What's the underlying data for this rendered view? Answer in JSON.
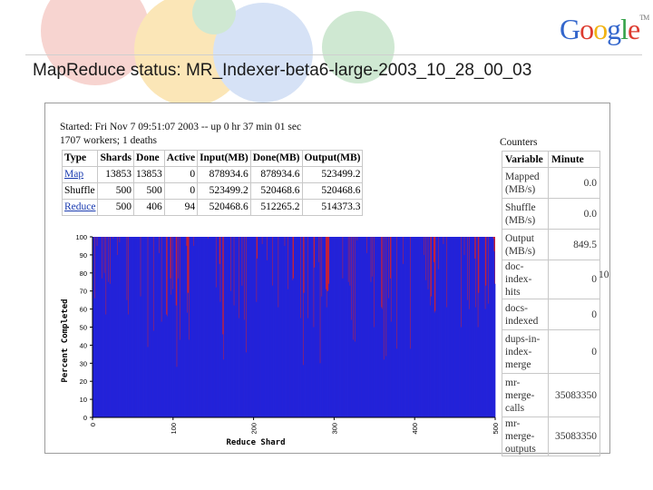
{
  "header": {
    "logo_letters": [
      {
        "ch": "G",
        "color": "#3366cc"
      },
      {
        "ch": "o",
        "color": "#dd3b2f"
      },
      {
        "ch": "o",
        "color": "#f1b313"
      },
      {
        "ch": "g",
        "color": "#3366cc"
      },
      {
        "ch": "l",
        "color": "#36a24a"
      },
      {
        "ch": "e",
        "color": "#dd3b2f"
      }
    ],
    "logo_tm": "TM",
    "title": "MapReduce status: MR_Indexer-beta6-large-2003_10_28_00_03"
  },
  "status": {
    "started": "Started: Fri Nov 7 09:51:07 2003 -- up 0 hr 37 min 01 sec",
    "workers": "1707 workers; 1 deaths"
  },
  "phases_table": {
    "columns": [
      "Type",
      "Shards",
      "Done",
      "Active",
      "Input(MB)",
      "Done(MB)",
      "Output(MB)"
    ],
    "rows": [
      {
        "type": "Map",
        "link": true,
        "cells": [
          "13853",
          "13853",
          "0",
          "878934.6",
          "878934.6",
          "523499.2"
        ]
      },
      {
        "type": "Shuffle",
        "link": false,
        "cells": [
          "500",
          "500",
          "0",
          "523499.2",
          "520468.6",
          "520468.6"
        ]
      },
      {
        "type": "Reduce",
        "link": true,
        "cells": [
          "500",
          "406",
          "94",
          "520468.6",
          "512265.2",
          "514373.3"
        ]
      }
    ]
  },
  "counters": {
    "heading": "Counters",
    "columns": [
      "Variable",
      "Minute"
    ],
    "rows": [
      {
        "variable": "Mapped (MB/s)",
        "value": "0.0"
      },
      {
        "variable": "Shuffle (MB/s)",
        "value": "0.0"
      },
      {
        "variable": "Output (MB/s)",
        "value": "849.5"
      },
      {
        "variable": "doc-index-hits",
        "value": "0"
      },
      {
        "variable": "docs-indexed",
        "value": "0"
      },
      {
        "variable": "dups-in-index-merge",
        "value": "0"
      },
      {
        "variable": "mr-merge-calls",
        "value": "35083350"
      },
      {
        "variable": "mr-merge-outputs",
        "value": "35083350"
      }
    ],
    "clipped_text": "10"
  },
  "chart_data": {
    "type": "bar",
    "xlabel": "Reduce Shard",
    "ylabel": "Percent Completed",
    "xlim": [
      0,
      500
    ],
    "ylim": [
      0,
      100
    ],
    "x_ticks": [
      "0",
      "100",
      "200",
      "300",
      "400",
      "500"
    ],
    "y_ticks": [
      "0",
      "10",
      "20",
      "30",
      "40",
      "50",
      "60",
      "70",
      "80",
      "90",
      "100"
    ],
    "series": [
      {
        "values": []
      }
    ],
    "colors": {
      "bar": "#2323d9",
      "gap": "#c4213a"
    },
    "note": "approx: most of 500 shards complete (100%), ~94 active shards shown partially complete"
  }
}
